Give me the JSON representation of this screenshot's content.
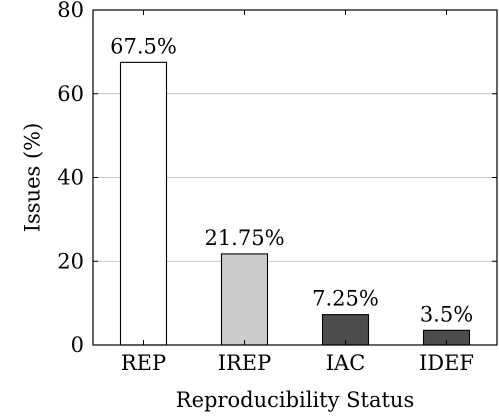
{
  "chart_data": {
    "type": "bar",
    "categories": [
      "REP",
      "IREP",
      "IAC",
      "IDEF"
    ],
    "values": [
      67.5,
      21.75,
      7.25,
      3.5
    ],
    "data_labels": [
      "67.5%",
      "21.75%",
      "7.25%",
      "3.5%"
    ],
    "bar_colors": [
      "#ffffff",
      "#cccccc",
      "#4d4d4d",
      "#4d4d4d"
    ],
    "xlabel": "Reproducibility Status",
    "ylabel": "Issues (%)",
    "ylim": [
      0,
      80
    ],
    "yticks": [
      0,
      20,
      40,
      60,
      80
    ],
    "grid": "horizontal"
  }
}
